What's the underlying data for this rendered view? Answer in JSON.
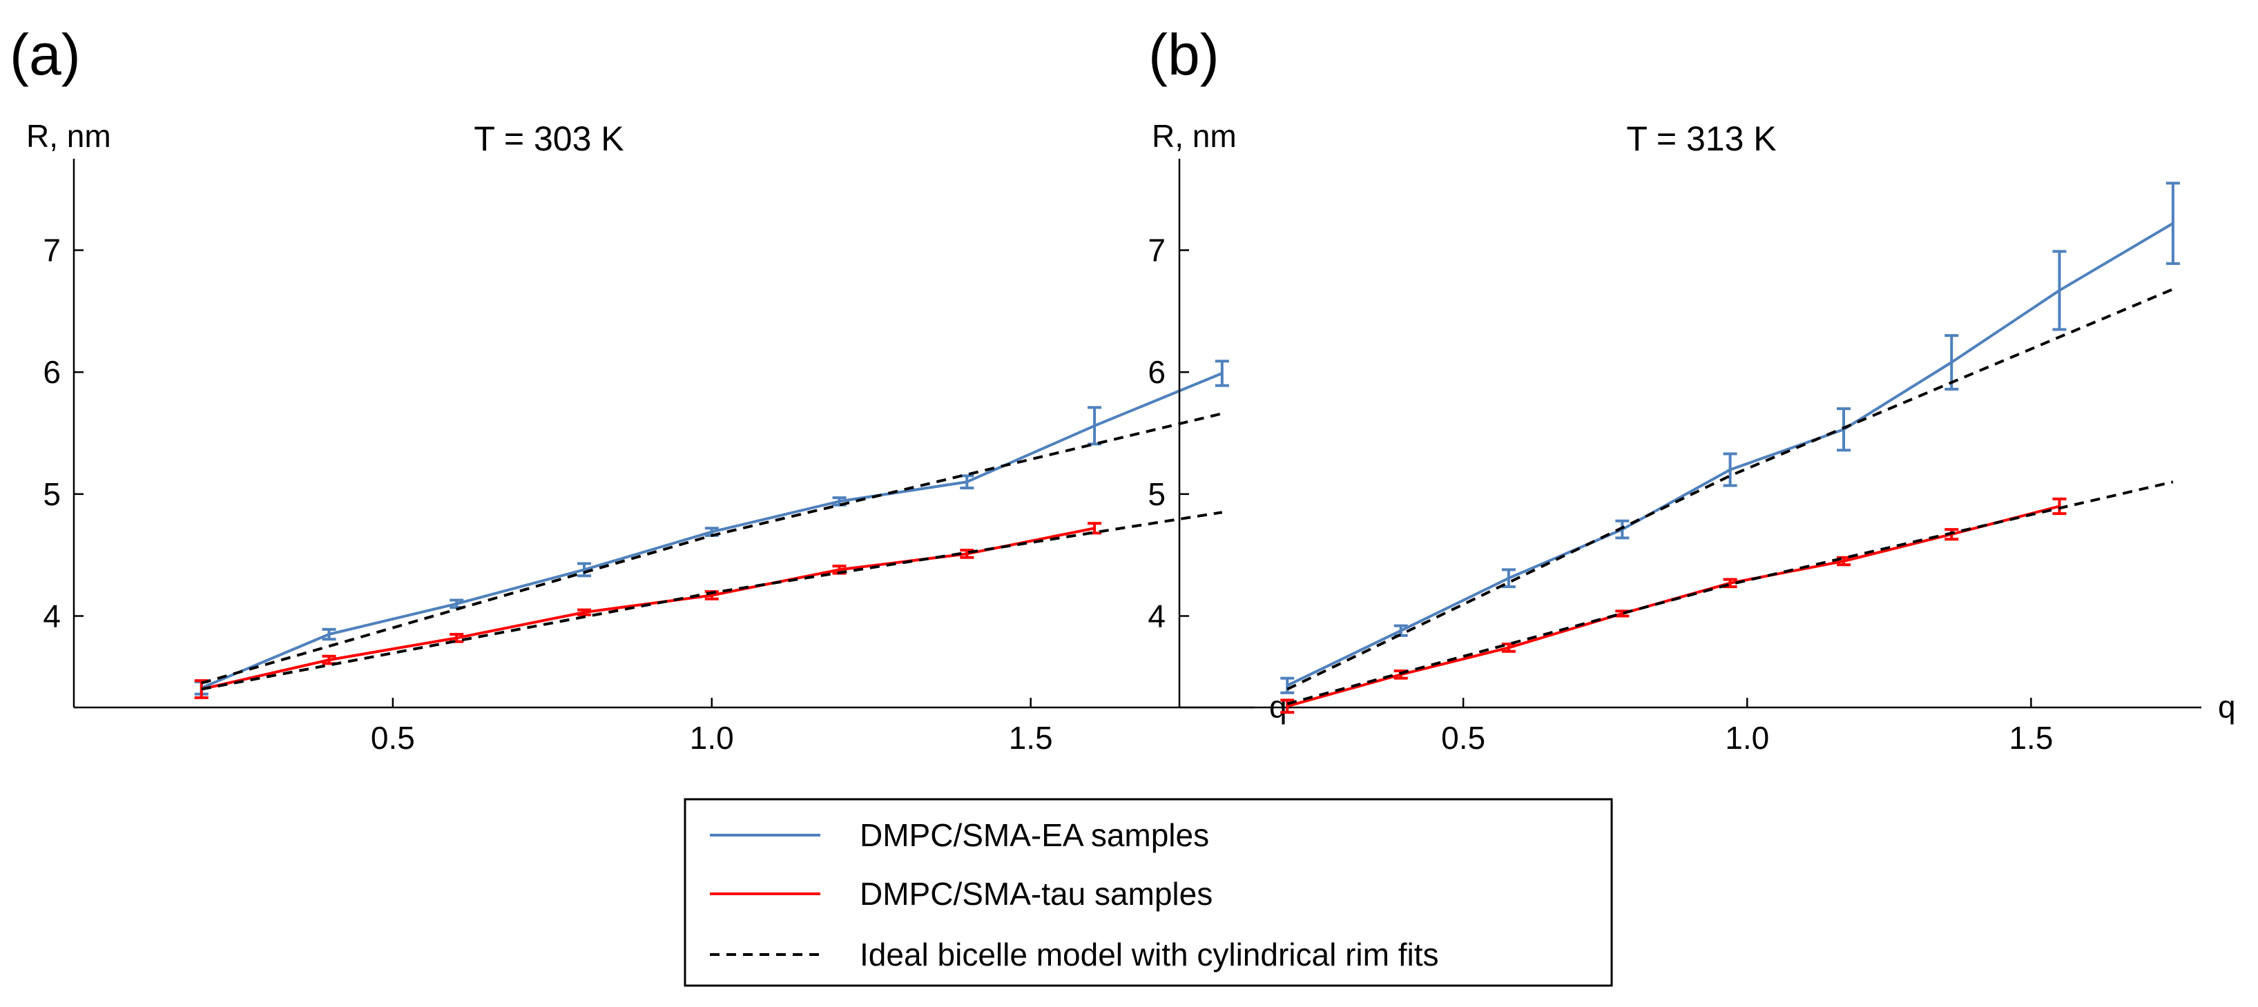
{
  "chart_data": [
    {
      "type": "line",
      "panel_label": "(a)",
      "title": "T = 303 K",
      "xlabel": "q",
      "ylabel": "R, nm",
      "xlim": [
        0,
        1.85
      ],
      "ylim": [
        3.25,
        7.75
      ],
      "xticks": [
        "0.5",
        "1.0",
        "1.5"
      ],
      "xtick_values": [
        0.5,
        1.0,
        1.5
      ],
      "yticks": [
        "4",
        "5",
        "6",
        "7"
      ],
      "ytick_values": [
        4,
        5,
        6,
        7
      ],
      "grid": false,
      "series": [
        {
          "name": "DMPC/SMA-EA samples",
          "color": "#4f81bd",
          "style": "solid",
          "x": [
            0.2,
            0.4,
            0.6,
            0.8,
            1.0,
            1.2,
            1.4,
            1.6,
            1.8
          ],
          "y": [
            3.41,
            3.85,
            4.1,
            4.38,
            4.69,
            4.94,
            5.1,
            5.56,
            5.99
          ],
          "err": [
            0.05,
            0.04,
            0.03,
            0.05,
            0.03,
            0.03,
            0.05,
            0.15,
            0.1
          ]
        },
        {
          "name": "DMPC/SMA-tau samples",
          "color": "#ff0000",
          "style": "solid",
          "x": [
            0.2,
            0.4,
            0.6,
            0.8,
            1.0,
            1.2,
            1.4,
            1.6
          ],
          "y": [
            3.4,
            3.64,
            3.82,
            4.03,
            4.17,
            4.38,
            4.51,
            4.72
          ],
          "err": [
            0.07,
            0.03,
            0.03,
            0.02,
            0.03,
            0.03,
            0.03,
            0.04
          ]
        },
        {
          "name": "Ideal bicelle model with cylindrical rim fits",
          "color": "#000000",
          "style": "dashed",
          "x": [
            0.2,
            1.0,
            1.8
          ],
          "y": [
            3.45,
            4.66,
            5.66
          ]
        },
        {
          "name": "Ideal bicelle model with cylindrical rim fits",
          "color": "#000000",
          "style": "dashed",
          "x": [
            0.2,
            1.0,
            1.8
          ],
          "y": [
            3.4,
            4.19,
            4.85
          ]
        }
      ]
    },
    {
      "type": "line",
      "panel_label": "(b)",
      "title": "T = 313 K",
      "xlabel": "q",
      "ylabel": "R, nm",
      "xlim": [
        0,
        1.8
      ],
      "ylim": [
        3.25,
        7.75
      ],
      "xticks": [
        "0.5",
        "1.0",
        "1.5"
      ],
      "xtick_values": [
        0.5,
        1.0,
        1.5
      ],
      "yticks": [
        "4",
        "5",
        "6",
        "7"
      ],
      "ytick_values": [
        4,
        5,
        6,
        7
      ],
      "grid": false,
      "series": [
        {
          "name": "DMPC/SMA-EA samples",
          "color": "#4f81bd",
          "style": "solid",
          "x": [
            0.19,
            0.39,
            0.58,
            0.78,
            0.97,
            1.17,
            1.36,
            1.55,
            1.75
          ],
          "y": [
            3.43,
            3.88,
            4.31,
            4.71,
            5.2,
            5.53,
            6.08,
            6.67,
            7.22
          ],
          "err": [
            0.06,
            0.04,
            0.07,
            0.07,
            0.13,
            0.17,
            0.22,
            0.32,
            0.33
          ]
        },
        {
          "name": "DMPC/SMA-tau samples",
          "color": "#ff0000",
          "style": "solid",
          "x": [
            0.19,
            0.39,
            0.58,
            0.78,
            0.97,
            1.17,
            1.36,
            1.55
          ],
          "y": [
            3.26,
            3.52,
            3.74,
            4.02,
            4.27,
            4.45,
            4.67,
            4.9
          ],
          "err": [
            0.05,
            0.03,
            0.03,
            0.02,
            0.03,
            0.03,
            0.04,
            0.06
          ]
        },
        {
          "name": "Ideal bicelle model with cylindrical rim fits",
          "color": "#000000",
          "style": "dashed",
          "x": [
            0.19,
            0.97,
            1.75
          ],
          "y": [
            3.4,
            5.15,
            6.68
          ]
        },
        {
          "name": "Ideal bicelle model with cylindrical rim fits",
          "color": "#000000",
          "style": "dashed",
          "x": [
            0.19,
            0.97,
            1.75
          ],
          "y": [
            3.28,
            4.26,
            5.1
          ]
        }
      ]
    }
  ],
  "legend": {
    "position": "bottom-center",
    "items": [
      {
        "label": "DMPC/SMA-EA samples",
        "color": "#4f81bd",
        "style": "solid"
      },
      {
        "label": "DMPC/SMA-tau samples",
        "color": "#ff0000",
        "style": "solid"
      },
      {
        "label": "Ideal bicelle model with cylindrical rim fits",
        "color": "#000000",
        "style": "dashed"
      }
    ]
  }
}
